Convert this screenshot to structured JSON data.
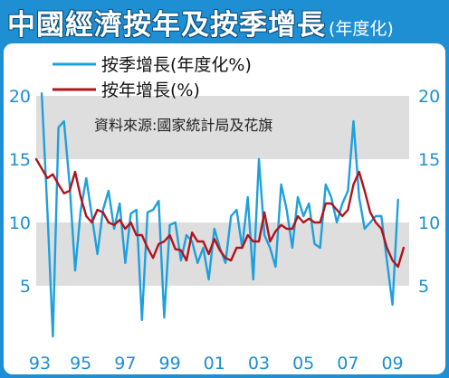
{
  "title": {
    "main": "中國經濟按年及按季增長",
    "sub": "(年度化)"
  },
  "colors": {
    "background": "#1e8fd2",
    "band": "#dedede",
    "qoq_line": "#1ea0dc",
    "yoy_line": "#b0141c",
    "tick_text": "#1e8fd2"
  },
  "chart_data": {
    "type": "line",
    "title": "中國經濟按年及按季增長(年度化)",
    "source": "資料來源:國家統計局及花旗",
    "x_tick_labels": [
      "93",
      "95",
      "97",
      "99",
      "01",
      "03",
      "05",
      "07",
      "09"
    ],
    "x_tick_years": [
      1993,
      1995,
      1997,
      1999,
      2001,
      2003,
      2005,
      2007,
      2009
    ],
    "xlim": [
      1993.0,
      2009.75
    ],
    "y_tick_labels": [
      "20",
      "15",
      "10",
      "5"
    ],
    "y_tick_values": [
      20,
      15,
      10,
      5
    ],
    "ylim": [
      0,
      23
    ],
    "shaded_bands": [
      [
        15,
        20
      ],
      [
        5,
        10
      ]
    ],
    "legend_position": "top-left",
    "series": [
      {
        "name": "按季增長(年度化%)",
        "color": "#1ea0dc",
        "x": [
          1993.25,
          1993.5,
          1993.75,
          1994.0,
          1994.25,
          1994.5,
          1994.75,
          1995.0,
          1995.25,
          1995.5,
          1995.75,
          1996.0,
          1996.25,
          1996.5,
          1996.75,
          1997.0,
          1997.25,
          1997.5,
          1997.75,
          1998.0,
          1998.25,
          1998.5,
          1998.75,
          1999.0,
          1999.25,
          1999.5,
          1999.75,
          2000.0,
          2000.25,
          2000.5,
          2000.75,
          2001.0,
          2001.25,
          2001.5,
          2001.75,
          2002.0,
          2002.25,
          2002.5,
          2002.75,
          2003.0,
          2003.25,
          2003.5,
          2003.75,
          2004.0,
          2004.25,
          2004.5,
          2004.75,
          2005.0,
          2005.25,
          2005.5,
          2005.75,
          2006.0,
          2006.25,
          2006.5,
          2006.75,
          2007.0,
          2007.25,
          2007.5,
          2007.75,
          2008.0,
          2008.25,
          2008.5,
          2008.75,
          2009.0,
          2009.25
        ],
        "values": [
          20.2,
          11.0,
          1.0,
          17.5,
          18.0,
          13.0,
          6.2,
          11.0,
          13.5,
          10.5,
          7.5,
          11.0,
          12.5,
          9.5,
          11.5,
          6.8,
          10.7,
          11.0,
          2.3,
          10.8,
          11.0,
          11.7,
          2.5,
          9.8,
          10.0,
          7.0,
          9.0,
          8.5,
          6.8,
          8.0,
          5.5,
          9.5,
          8.0,
          6.8,
          10.5,
          11.0,
          8.0,
          12.0,
          5.5,
          15.0,
          9.0,
          8.0,
          6.5,
          13.0,
          11.0,
          8.0,
          12.0,
          10.5,
          11.5,
          8.3,
          8.0,
          13.0,
          12.0,
          10.0,
          11.5,
          12.5,
          18.0,
          12.0,
          9.5,
          10.0,
          10.5,
          10.5,
          7.0,
          3.5,
          11.8
        ]
      },
      {
        "name": "按年增長(%)",
        "color": "#b0141c",
        "x": [
          1993.0,
          1993.5,
          1993.75,
          1994.0,
          1994.25,
          1994.5,
          1994.75,
          1995.0,
          1995.25,
          1995.5,
          1995.75,
          1996.0,
          1996.25,
          1996.5,
          1996.75,
          1997.0,
          1997.25,
          1997.5,
          1997.75,
          1998.0,
          1998.25,
          1998.5,
          1998.75,
          1999.0,
          1999.25,
          1999.5,
          1999.75,
          2000.0,
          2000.25,
          2000.5,
          2000.75,
          2001.0,
          2001.25,
          2001.5,
          2001.75,
          2002.0,
          2002.25,
          2002.5,
          2002.75,
          2003.0,
          2003.25,
          2003.5,
          2003.75,
          2004.0,
          2004.25,
          2004.5,
          2004.75,
          2005.0,
          2005.25,
          2005.5,
          2005.75,
          2006.0,
          2006.25,
          2006.5,
          2006.75,
          2007.0,
          2007.25,
          2007.5,
          2007.75,
          2008.0,
          2008.25,
          2008.5,
          2008.75,
          2009.0,
          2009.25,
          2009.5
        ],
        "values": [
          15.0,
          13.5,
          13.8,
          13.0,
          12.3,
          12.5,
          14.0,
          12.0,
          10.5,
          10.0,
          11.0,
          10.8,
          10.0,
          9.8,
          10.2,
          9.5,
          10.0,
          9.0,
          9.0,
          8.0,
          7.2,
          8.3,
          8.5,
          9.0,
          7.9,
          7.8,
          7.0,
          9.2,
          8.5,
          8.5,
          7.5,
          8.7,
          7.8,
          7.2,
          7.0,
          8.0,
          8.0,
          9.0,
          8.5,
          8.5,
          10.8,
          8.5,
          9.3,
          9.8,
          9.5,
          9.5,
          10.5,
          10.0,
          10.3,
          10.0,
          10.0,
          11.5,
          11.5,
          11.0,
          10.5,
          11.0,
          13.0,
          14.0,
          12.5,
          10.8,
          10.0,
          9.5,
          8.0,
          7.0,
          6.5,
          8.0
        ]
      }
    ]
  }
}
